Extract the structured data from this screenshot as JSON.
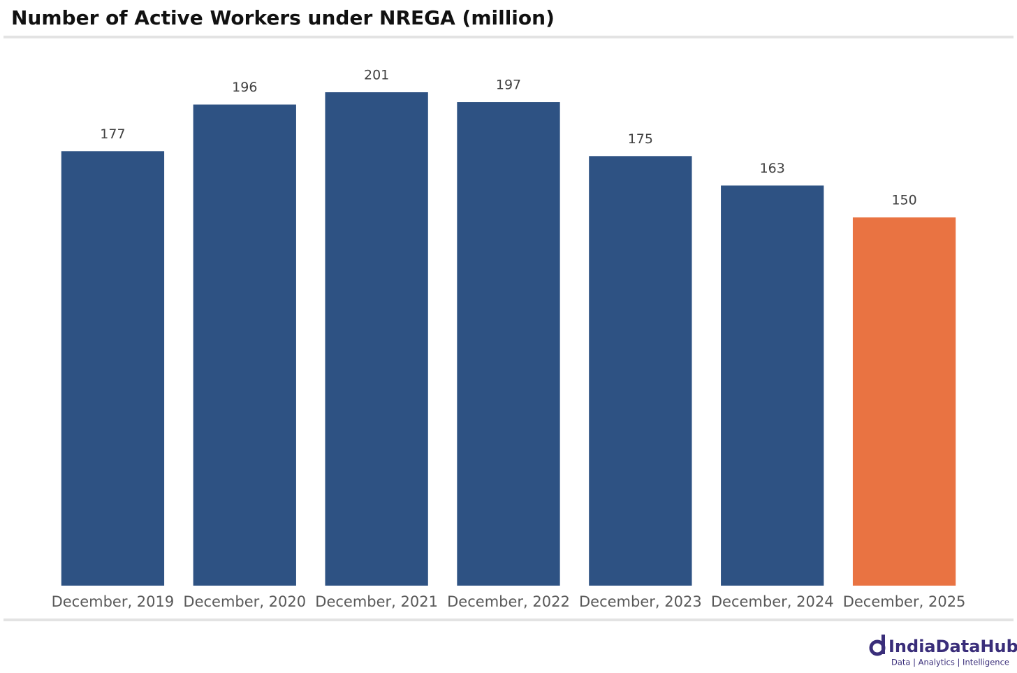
{
  "chart_data": {
    "type": "bar",
    "title": "Number of Active Workers under NREGA (million)",
    "categories": [
      "December, 2019",
      "December, 2020",
      "December, 2021",
      "December, 2022",
      "December, 2023",
      "December, 2024",
      "December, 2025"
    ],
    "values": [
      177,
      196,
      201,
      197,
      175,
      163,
      150
    ],
    "colors": [
      "#2e5283",
      "#2e5283",
      "#2e5283",
      "#2e5283",
      "#2e5283",
      "#2e5283",
      "#e97342"
    ]
  },
  "logo": {
    "name": "IndiaDataHub",
    "tagline": "Data | Analytics | Intelligence"
  }
}
